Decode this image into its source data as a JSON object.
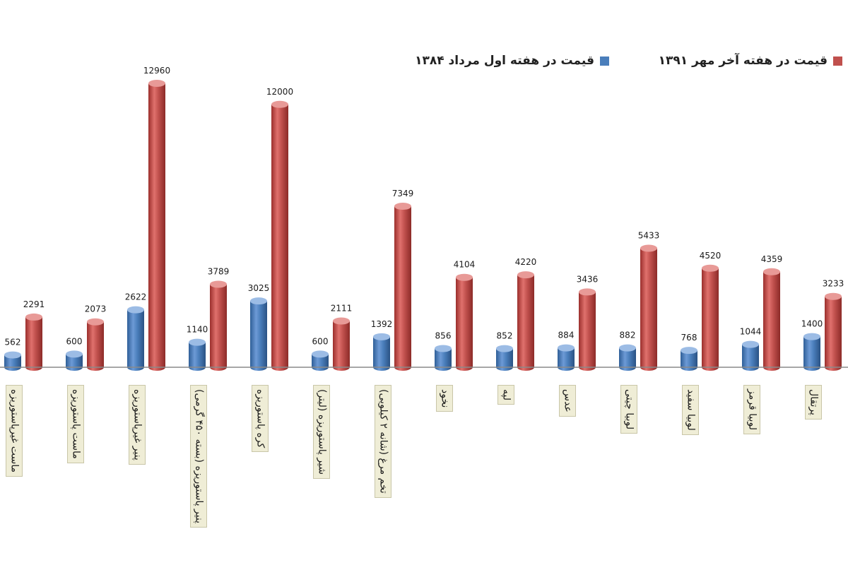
{
  "chart_data": {
    "type": "bar",
    "categories": [
      "ماست غیرپاستوریزه",
      "ماست پاستوریزه",
      "پنیر غیرپاستوریزه",
      "پنیر پاستوریزه (بسته ۴۵۰ گرمی)",
      "کره پاستوریزه",
      "شیر پاستوریزه (لیتر)",
      "تخم مرغ (شانه ۲ کیلویی)",
      "نخود",
      "لپه",
      "عدس",
      "لوبیا چیتی",
      "لوبیا سفید",
      "لوبیا قرمز",
      "پرتقال"
    ],
    "series": [
      {
        "name": "قیمت در هفته اول مرداد ۱۳۸۴",
        "color": "#4a7ebb",
        "values": [
          562,
          600,
          2622,
          1140,
          3025,
          600,
          1392,
          856,
          852,
          884,
          882,
          768,
          1044,
          1400
        ]
      },
      {
        "name": "قیمت در هفته آخر مهر ۱۳۹۱",
        "color": "#c0504d",
        "values": [
          2291,
          2073,
          12960,
          3789,
          12000,
          2111,
          7349,
          4104,
          4220,
          3436,
          5433,
          4520,
          4359,
          3233
        ]
      }
    ],
    "value_labels_blue": [
      "562",
      "600",
      "2622",
      "1140",
      "3025",
      "600",
      "1392",
      "856",
      "852",
      "884",
      "882",
      "768",
      "1044",
      "1400"
    ],
    "value_labels_red": [
      "2291",
      "2073",
      "12960",
      "3789",
      "12000",
      "2111",
      "7349",
      "4104",
      "4220",
      "3436",
      "5433",
      "4520",
      "4359",
      "3233"
    ],
    "legend_position": "top-right",
    "ylim": [
      0,
      14000
    ],
    "grid": false,
    "style": "3d-cylinder"
  },
  "legend": {
    "red_label": "قیمت در هفته آخر مهر ۱۳۹۱",
    "blue_label": "قیمت در هفته اول مرداد ۱۳۸۴"
  }
}
